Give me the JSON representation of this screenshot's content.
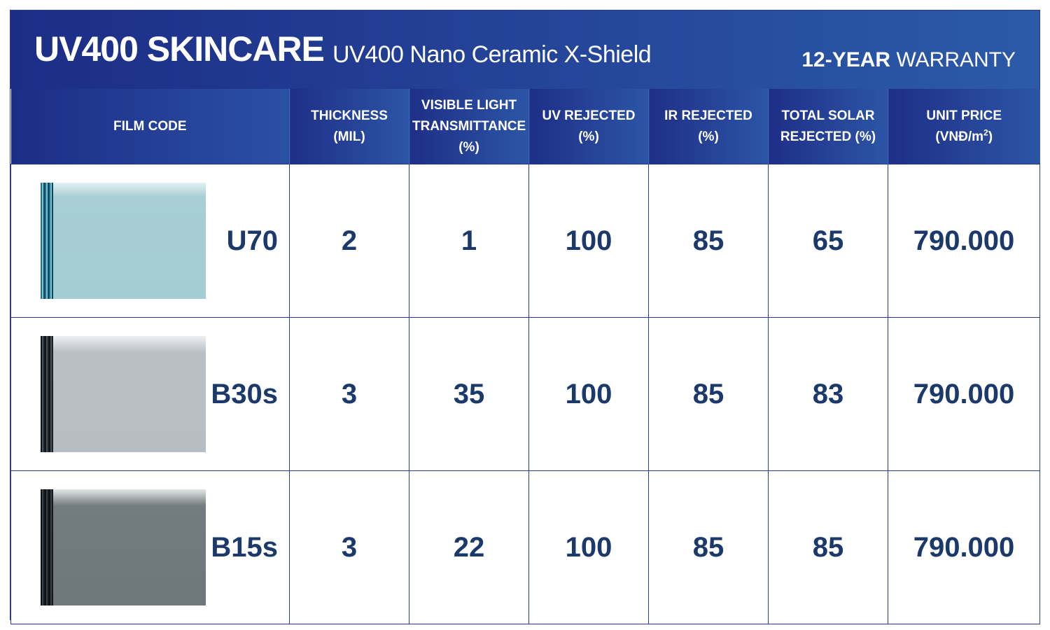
{
  "banner": {
    "brand": "UV400 SKINCARE",
    "subtitle": "UV400 Nano Ceramic X-Shield",
    "warranty_bold": "12-YEAR",
    "warranty_rest": "WARRANTY"
  },
  "headers": {
    "film_code": "FILM CODE",
    "thickness_1": "THICKNESS",
    "thickness_2": "(MIL)",
    "vlt_1": "VISIBLE LIGHT",
    "vlt_2": "TRANSMITTANCE",
    "vlt_3": "(%)",
    "uv_1": "UV REJECTED",
    "uv_2": "(%)",
    "ir_1": "IR REJECTED",
    "ir_2": "(%)",
    "tsr_1": "TOTAL SOLAR",
    "tsr_2": "REJECTED (%)",
    "price_1": "UNIT PRICE",
    "price_2": "(VNĐ/m",
    "price_sup": "2",
    "price_3": ")"
  },
  "rows": [
    {
      "code": "U70",
      "thickness": "2",
      "vlt": "1",
      "uv": "100",
      "ir": "85",
      "tsr": "65",
      "price": "790.000",
      "swatch_color": "#a4cdd1"
    },
    {
      "code": "B30s",
      "thickness": "3",
      "vlt": "35",
      "uv": "100",
      "ir": "85",
      "tsr": "83",
      "price": "790.000",
      "swatch_color": "#b6bdc3"
    },
    {
      "code": "B15s",
      "thickness": "3",
      "vlt": "22",
      "uv": "100",
      "ir": "85",
      "tsr": "85",
      "price": "790.000",
      "swatch_color": "#6e7779"
    }
  ],
  "colors": {
    "banner": "#1c2d86",
    "accent": "#2b5aa8",
    "value_text": "#1b3a6b"
  }
}
